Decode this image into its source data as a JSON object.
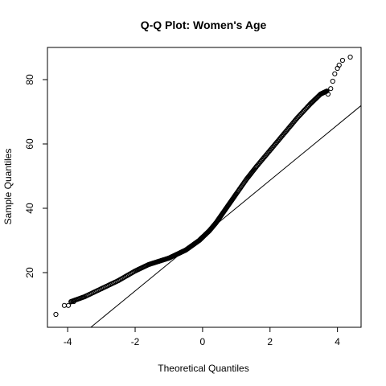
{
  "chart_data": {
    "type": "scatter",
    "title": "Q-Q Plot: Women's Age",
    "xlabel": "Theoretical Quantiles",
    "ylabel": "Sample Quantiles",
    "xlim": [
      -4.6,
      4.7
    ],
    "ylim": [
      3,
      90
    ],
    "xticks": [
      -4,
      -2,
      0,
      2,
      4
    ],
    "yticks": [
      20,
      40,
      60,
      80
    ],
    "grid": false,
    "legend": "none",
    "colors": {
      "points": "#000000",
      "line": "#000000",
      "frame": "#000000"
    },
    "reference_line": {
      "slope": 8.6,
      "intercept": 31.5
    },
    "quantile_curve": {
      "x": [
        -3.9,
        -3.5,
        -3.0,
        -2.5,
        -2.0,
        -1.6,
        -1.3,
        -1.0,
        -0.7,
        -0.5,
        -0.3,
        -0.1,
        0.0,
        0.2,
        0.4,
        0.6,
        0.8,
        1.0,
        1.3,
        1.6,
        2.0,
        2.4,
        2.8,
        3.2,
        3.5,
        3.7
      ],
      "y": [
        11,
        12.5,
        15,
        17.5,
        20.5,
        22.5,
        23.5,
        24.5,
        26,
        27,
        28.5,
        30,
        31,
        33,
        35.5,
        38.5,
        41.5,
        44.5,
        49,
        53,
        58,
        63,
        68,
        72.5,
        75.5,
        76.5
      ]
    },
    "tail_points": {
      "x": [
        -4.35,
        -4.1,
        -3.98,
        -3.9,
        -3.82,
        3.72,
        3.8,
        3.86,
        3.92,
        4.0,
        4.05,
        4.15,
        4.38
      ],
      "y": [
        7,
        9.8,
        9.8,
        10.9,
        11,
        75.5,
        77.2,
        79.5,
        81.8,
        83.5,
        84.5,
        86,
        87
      ]
    }
  }
}
